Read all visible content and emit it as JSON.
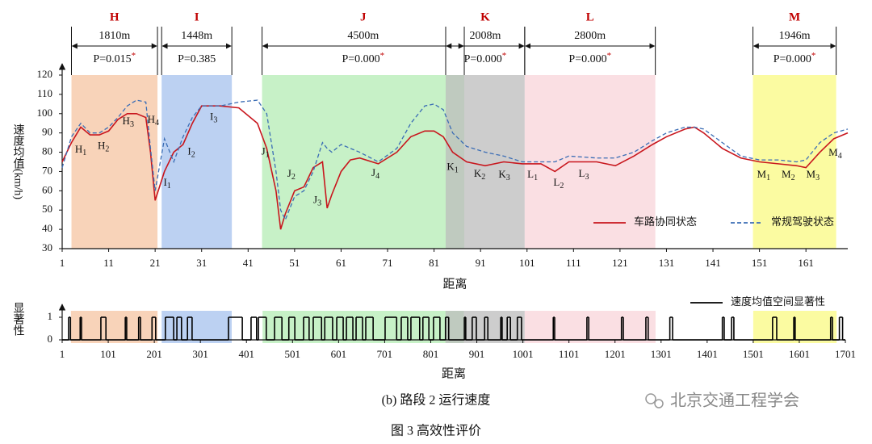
{
  "chart_data": [
    {
      "type": "line",
      "x_label": "距离",
      "y_label": "速度均值(km/h)",
      "xlim": [
        1,
        170
      ],
      "xticks": [
        1,
        11,
        21,
        31,
        41,
        51,
        61,
        71,
        81,
        91,
        101,
        111,
        121,
        131,
        141,
        151,
        161
      ],
      "ylim": [
        30,
        120
      ],
      "yticks": [
        30,
        40,
        50,
        60,
        70,
        80,
        90,
        100,
        110,
        120
      ],
      "legend": "lower right",
      "x": [
        1,
        3,
        5,
        7,
        9,
        11,
        13,
        15,
        17,
        19,
        20,
        21,
        23,
        25,
        27,
        29,
        31,
        35,
        39,
        43,
        45,
        47,
        48,
        49,
        51,
        53,
        55,
        57,
        58,
        59,
        61,
        63,
        65,
        69,
        73,
        76,
        79,
        81,
        83,
        85,
        88,
        92,
        96,
        100,
        104,
        107,
        110,
        116,
        120,
        124,
        128,
        131,
        135,
        137,
        139,
        143,
        147,
        151,
        155,
        159,
        161,
        164,
        167,
        170
      ],
      "series": [
        {
          "name": "车路协同状态",
          "color": "#c8161d",
          "dash": false,
          "values": [
            75,
            85,
            93,
            89,
            89,
            91,
            97,
            100,
            100,
            98,
            80,
            55,
            70,
            80,
            84,
            95,
            104,
            104,
            103,
            95,
            82,
            60,
            40,
            48,
            60,
            62,
            72,
            75,
            51,
            58,
            70,
            76,
            77,
            74,
            80,
            88,
            91,
            91,
            88,
            80,
            75,
            73,
            75,
            74,
            74,
            70,
            75,
            75,
            73,
            78,
            84,
            88,
            92,
            93,
            90,
            82,
            77,
            75,
            74,
            73,
            72,
            80,
            87,
            90
          ]
        },
        {
          "name": "常规驾驶状态",
          "color": "#3b6db5",
          "dash": true,
          "values": [
            72,
            88,
            95,
            90,
            90,
            93,
            98,
            104,
            107,
            106,
            82,
            60,
            87,
            75,
            88,
            98,
            104,
            104,
            106,
            107,
            100,
            70,
            50,
            45,
            57,
            60,
            70,
            85,
            82,
            80,
            84,
            82,
            80,
            75,
            82,
            95,
            104,
            105,
            102,
            90,
            83,
            80,
            78,
            75,
            75,
            75,
            78,
            77,
            77,
            80,
            86,
            90,
            93,
            93,
            92,
            85,
            78,
            76,
            76,
            75,
            76,
            85,
            90,
            92
          ]
        }
      ],
      "regions": [
        {
          "name": "H",
          "start": 3,
          "end": 21.5,
          "color": "#f5c4a2",
          "length": "1810m",
          "p": "P=0.015",
          "p_mark": "*"
        },
        {
          "name": "I",
          "start": 22.4,
          "end": 37.5,
          "color": "#a6c2ee",
          "length": "1448m",
          "p": "P=0.385"
        },
        {
          "name": "J",
          "start": 44,
          "end": 87.5,
          "color": "#b4ecb4",
          "length": "4500m",
          "p": "P=0.000",
          "p_mark": "*"
        },
        {
          "name": "K",
          "start": 83.5,
          "end": 100.5,
          "color": "#bcbcbc",
          "length": "2008m",
          "p": "P=0.000",
          "p_mark": "*"
        },
        {
          "name": "L",
          "start": 100.5,
          "end": 128.6,
          "color": "#f8d4da",
          "length": "2800m",
          "p": "P=0.000",
          "p_mark": "*"
        },
        {
          "name": "M",
          "start": 149.6,
          "end": 167.5,
          "color": "#fafa82",
          "length": "1946m",
          "p": "P=0.000",
          "p_mark": "*"
        }
      ],
      "annotations": [
        {
          "text": "H1",
          "x": 5,
          "y": 81
        },
        {
          "text": "H2",
          "x": 9.9,
          "y": 83
        },
        {
          "text": "H3",
          "x": 15.2,
          "y": 95.7
        },
        {
          "text": "H4",
          "x": 20.6,
          "y": 96.6
        },
        {
          "text": "I1",
          "x": 23.6,
          "y": 64
        },
        {
          "text": "I2",
          "x": 28.8,
          "y": 80
        },
        {
          "text": "I3",
          "x": 33.6,
          "y": 98
        },
        {
          "text": "J1",
          "x": 44.7,
          "y": 80
        },
        {
          "text": "J2",
          "x": 50.3,
          "y": 68.5
        },
        {
          "text": "J3",
          "x": 55.9,
          "y": 55
        },
        {
          "text": "J4",
          "x": 68.4,
          "y": 69
        },
        {
          "text": "K1",
          "x": 85,
          "y": 72
        },
        {
          "text": "K2",
          "x": 90.8,
          "y": 68.5
        },
        {
          "text": "K3",
          "x": 96.1,
          "y": 68
        },
        {
          "text": "L1",
          "x": 102.2,
          "y": 68
        },
        {
          "text": "L2",
          "x": 107.8,
          "y": 64
        },
        {
          "text": "L3",
          "x": 113.2,
          "y": 68.5
        },
        {
          "text": "M1",
          "x": 151.9,
          "y": 68
        },
        {
          "text": "M2",
          "x": 157.2,
          "y": 68
        },
        {
          "text": "M3",
          "x": 162.5,
          "y": 68
        },
        {
          "text": "M4",
          "x": 167.3,
          "y": 79.5
        }
      ]
    },
    {
      "type": "step",
      "x_label": "距离",
      "y_label": "显著性",
      "xlim": [
        1,
        1701
      ],
      "xticks": [
        1,
        101,
        201,
        301,
        401,
        501,
        601,
        701,
        801,
        901,
        1001,
        1101,
        1201,
        1301,
        1401,
        1501,
        1601,
        1701
      ],
      "ylim": [
        0,
        1
      ],
      "yticks": [
        0,
        1
      ],
      "legend": "upper right",
      "regions": [
        {
          "start": 20,
          "end": 208,
          "color": "#f5c4a2"
        },
        {
          "start": 217,
          "end": 369,
          "color": "#a6c2ee"
        },
        {
          "start": 436,
          "end": 873,
          "color": "#b4ecb4"
        },
        {
          "start": 833,
          "end": 1005,
          "color": "#bcbcbc"
        },
        {
          "start": 1005,
          "end": 1289,
          "color": "#f8d4da"
        },
        {
          "start": 1501,
          "end": 1682,
          "color": "#fafa82"
        }
      ],
      "x": [
        1,
        15,
        19,
        40,
        43,
        85,
        96,
        138,
        141,
        167,
        171,
        196,
        204,
        225,
        243,
        250,
        260,
        273,
        283,
        362,
        392,
        411,
        423,
        427,
        444,
        462,
        478,
        493,
        506,
        525,
        537,
        546,
        564,
        571,
        588,
        597,
        611,
        618,
        632,
        639,
        653,
        660,
        676,
        702,
        727,
        737,
        751,
        758,
        777,
        784,
        797,
        807,
        821,
        833,
        840,
        874,
        877,
        891,
        900,
        918,
        925,
        953,
        956,
        967,
        974,
        989,
        998,
        1067,
        1070,
        1140,
        1144,
        1215,
        1219,
        1268,
        1273,
        1320,
        1326,
        1434,
        1438,
        1454,
        1459,
        1543,
        1552,
        1589,
        1592,
        1669,
        1673,
        1688,
        1695
      ],
      "series": [
        {
          "name": "速度均值空间显著性",
          "color": "#000000",
          "values": [
            0,
            1,
            0,
            1,
            0,
            1,
            0,
            1,
            0,
            1,
            0,
            1,
            0,
            1,
            0,
            1,
            0,
            1,
            0,
            1,
            0,
            1,
            0,
            1,
            0,
            1,
            0,
            1,
            0,
            1,
            0,
            1,
            0,
            1,
            0,
            1,
            0,
            1,
            0,
            1,
            0,
            1,
            0,
            1,
            0,
            1,
            0,
            1,
            0,
            1,
            0,
            1,
            0,
            1,
            0,
            1,
            0,
            1,
            0,
            1,
            0,
            1,
            0,
            1,
            0,
            1,
            0,
            1,
            0,
            1,
            0,
            1,
            0,
            1,
            0,
            1,
            0,
            1,
            0,
            1,
            0,
            1,
            0,
            1,
            0,
            1,
            0,
            1,
            0
          ]
        }
      ]
    }
  ],
  "caption": "(b) 路段 2 运行速度",
  "figure_caption": "图 3 高效性评价",
  "watermark": "北京交通工程学会"
}
